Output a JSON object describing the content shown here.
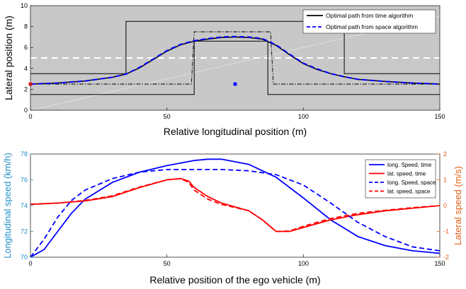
{
  "chart_data": [
    {
      "type": "line",
      "xlabel": "Relative longitudinal position (m)",
      "ylabel": "Lateral position (m)",
      "xlim": [
        0,
        150
      ],
      "ylim": [
        0,
        10
      ],
      "xticks": [
        "0",
        "50",
        "100",
        "150"
      ],
      "yticks": [
        "0",
        "2",
        "4",
        "6",
        "8",
        "10"
      ],
      "background": "#c8c8c8",
      "grid": false,
      "legend_position": "top-right",
      "series": [
        {
          "name": "Optimal path from time algorithm",
          "color": "#000000",
          "style": "solid",
          "x": [
            0,
            10,
            20,
            30,
            35,
            40,
            45,
            50,
            55,
            60,
            65,
            70,
            75,
            80,
            85,
            90,
            95,
            100,
            105,
            110,
            115,
            120,
            130,
            140,
            150
          ],
          "y": [
            2.5,
            2.6,
            2.8,
            3.15,
            3.45,
            4.05,
            4.85,
            5.65,
            6.25,
            6.6,
            6.8,
            6.95,
            7.0,
            6.95,
            6.8,
            6.2,
            5.3,
            4.45,
            3.9,
            3.5,
            3.2,
            2.95,
            2.75,
            2.6,
            2.5
          ]
        },
        {
          "name": "Optimal path from space algorithm",
          "color": "#0000ff",
          "style": "dashed",
          "x": [
            0,
            10,
            20,
            30,
            35,
            40,
            45,
            50,
            55,
            60,
            65,
            70,
            75,
            80,
            85,
            90,
            95,
            100,
            105,
            110,
            115,
            120,
            130,
            140,
            150
          ],
          "y": [
            2.5,
            2.6,
            2.8,
            3.15,
            3.45,
            4.1,
            4.9,
            5.7,
            6.3,
            6.65,
            6.85,
            7.0,
            7.05,
            7.0,
            6.85,
            6.25,
            5.35,
            4.5,
            3.95,
            3.5,
            3.2,
            2.95,
            2.75,
            2.6,
            2.5
          ]
        }
      ],
      "annotations": {
        "bounds_solid_upper": {
          "x": [
            0,
            35,
            35,
            60,
            60,
            87,
            87,
            115,
            115,
            150
          ],
          "y": [
            3.5,
            3.5,
            8.5,
            8.5,
            8.5,
            8.5,
            8.5,
            8.5,
            3.5,
            3.5
          ]
        },
        "bounds_solid_lower": {
          "x": [
            0,
            60,
            60,
            87,
            87,
            150
          ],
          "y": [
            1.5,
            1.5,
            6.6,
            6.6,
            1.5,
            1.5
          ]
        },
        "bounds_dashdot": {
          "x": [
            0,
            59,
            60,
            88,
            89,
            150
          ],
          "y": [
            2.5,
            2.5,
            7.5,
            7.5,
            2.5,
            2.5
          ]
        },
        "lane_marking_y": 5.0,
        "obstacle_marker": {
          "x": 75,
          "y": 2.5,
          "color": "#0000ff"
        },
        "start_marker": {
          "x": 0,
          "y": 2.5,
          "color": "#ff0000"
        },
        "diagonal_line": {
          "x": [
            0,
            150
          ],
          "y": [
            0,
            9
          ]
        }
      }
    },
    {
      "type": "line",
      "xlabel": "Relative position of the ego vehicle (m)",
      "ylabel_left": "Longitudinal speed (km/h)",
      "ylabel_right": "Lateral speed (m/s)",
      "xlim": [
        0,
        150
      ],
      "ylim_left": [
        70,
        78
      ],
      "ylim_right": [
        -2,
        2
      ],
      "xticks": [
        "0",
        "50",
        "100",
        "150"
      ],
      "yticks_left": [
        "70",
        "72",
        "74",
        "76",
        "78"
      ],
      "yticks_right": [
        "-2",
        "-1",
        "0",
        "1",
        "2"
      ],
      "grid": false,
      "legend_position": "top-right",
      "series": [
        {
          "name": "long. Speed, time",
          "axis": "left",
          "color": "#0000ff",
          "style": "solid",
          "x": [
            0,
            5,
            10,
            15,
            20,
            30,
            40,
            50,
            60,
            65,
            70,
            80,
            90,
            100,
            110,
            120,
            130,
            140,
            150
          ],
          "y": [
            70.0,
            70.6,
            72.0,
            73.4,
            74.5,
            75.8,
            76.6,
            77.1,
            77.5,
            77.6,
            77.6,
            77.2,
            76.2,
            74.6,
            72.9,
            71.6,
            70.9,
            70.5,
            70.3
          ]
        },
        {
          "name": "lat. speed, time",
          "axis": "right",
          "color": "#ff0000",
          "style": "solid",
          "x": [
            0,
            10,
            20,
            30,
            40,
            50,
            55,
            58,
            60,
            65,
            70,
            80,
            85,
            90,
            95,
            100,
            110,
            120,
            130,
            140,
            150
          ],
          "y": [
            0.05,
            0.1,
            0.18,
            0.35,
            0.7,
            1.0,
            1.05,
            0.95,
            0.7,
            0.35,
            0.1,
            -0.2,
            -0.55,
            -1.0,
            -1.0,
            -0.85,
            -0.55,
            -0.35,
            -0.2,
            -0.1,
            0.0
          ]
        },
        {
          "name": "long. Speed, space",
          "axis": "left",
          "color": "#0000ff",
          "style": "dashed",
          "x": [
            0,
            5,
            10,
            15,
            20,
            30,
            40,
            50,
            60,
            70,
            80,
            90,
            100,
            110,
            120,
            130,
            140,
            150
          ],
          "y": [
            70.0,
            71.4,
            73.1,
            74.4,
            75.2,
            76.1,
            76.6,
            76.8,
            76.8,
            76.8,
            76.7,
            76.4,
            75.6,
            74.2,
            72.7,
            71.6,
            70.8,
            70.5
          ]
        },
        {
          "name": "lat. speed, space",
          "axis": "right",
          "color": "#ff0000",
          "style": "dashed",
          "x": [
            0,
            10,
            20,
            30,
            40,
            50,
            55,
            58,
            60,
            65,
            70,
            80,
            85,
            90,
            95,
            100,
            110,
            120,
            130,
            140,
            150
          ],
          "y": [
            0.05,
            0.1,
            0.2,
            0.38,
            0.72,
            1.0,
            1.05,
            0.9,
            0.6,
            0.25,
            0.05,
            -0.2,
            -0.55,
            -1.0,
            -0.98,
            -0.8,
            -0.5,
            -0.3,
            -0.18,
            -0.08,
            0.0
          ]
        }
      ]
    }
  ]
}
